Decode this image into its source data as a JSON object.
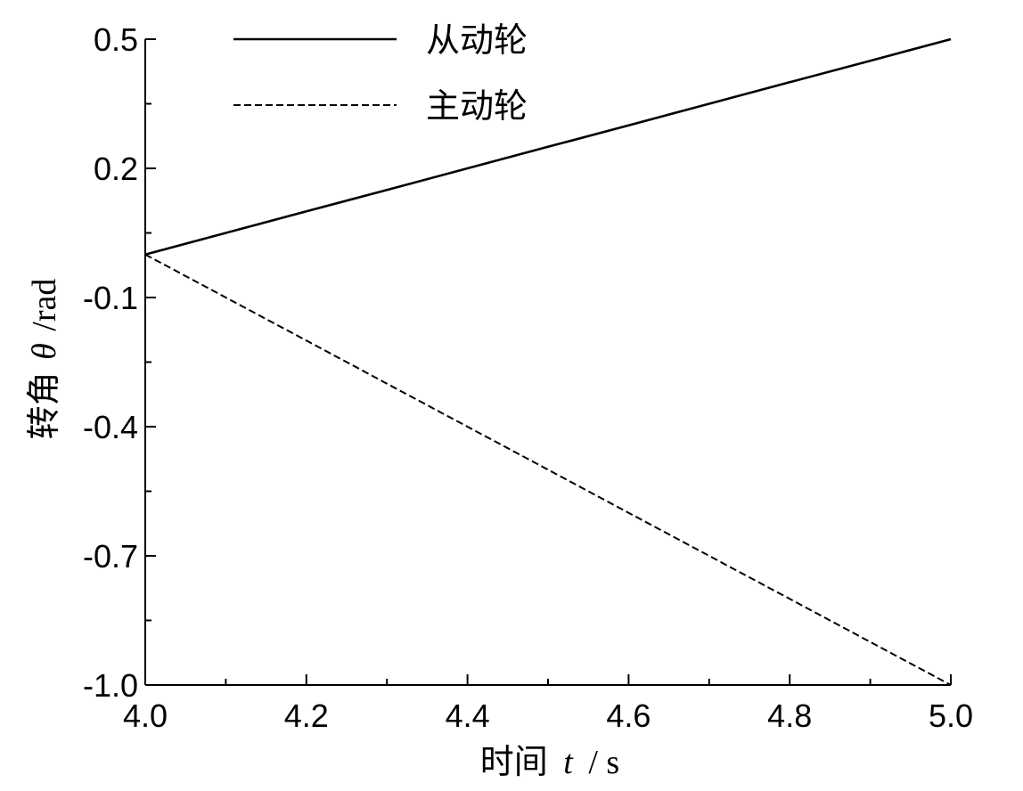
{
  "chart_data": {
    "type": "line",
    "title": "",
    "xlabel_prefix": "时间",
    "xlabel_var": "t",
    "xlabel_unit": "/ s",
    "ylabel_prefix": "转角",
    "ylabel_var": "θ",
    "ylabel_unit": "/rad",
    "xlim": [
      4.0,
      5.0
    ],
    "ylim": [
      -1.0,
      0.5
    ],
    "x_ticks": [
      "4.0",
      "4.2",
      "4.4",
      "4.6",
      "4.8",
      "5.0"
    ],
    "y_ticks": [
      "0.5",
      "0.2",
      "-0.1",
      "-0.4",
      "-0.7",
      "-1.0"
    ],
    "grid": false,
    "legend_position": "top-left",
    "series": [
      {
        "name": "从动轮",
        "style": "solid",
        "color": "#000000",
        "x": [
          4.0,
          4.1,
          4.2,
          4.3,
          4.4,
          4.5,
          4.6,
          4.7,
          4.8,
          4.9,
          5.0
        ],
        "y": [
          0.0,
          0.05,
          0.1,
          0.15,
          0.2,
          0.25,
          0.3,
          0.35,
          0.4,
          0.45,
          0.5
        ]
      },
      {
        "name": "主动轮",
        "style": "dashed",
        "color": "#000000",
        "x": [
          4.0,
          4.1,
          4.2,
          4.3,
          4.4,
          4.5,
          4.6,
          4.7,
          4.8,
          4.9,
          5.0
        ],
        "y": [
          0.0,
          -0.1,
          -0.2,
          -0.3,
          -0.4,
          -0.5,
          -0.6,
          -0.7,
          -0.8,
          -0.9,
          -1.0
        ]
      }
    ]
  }
}
